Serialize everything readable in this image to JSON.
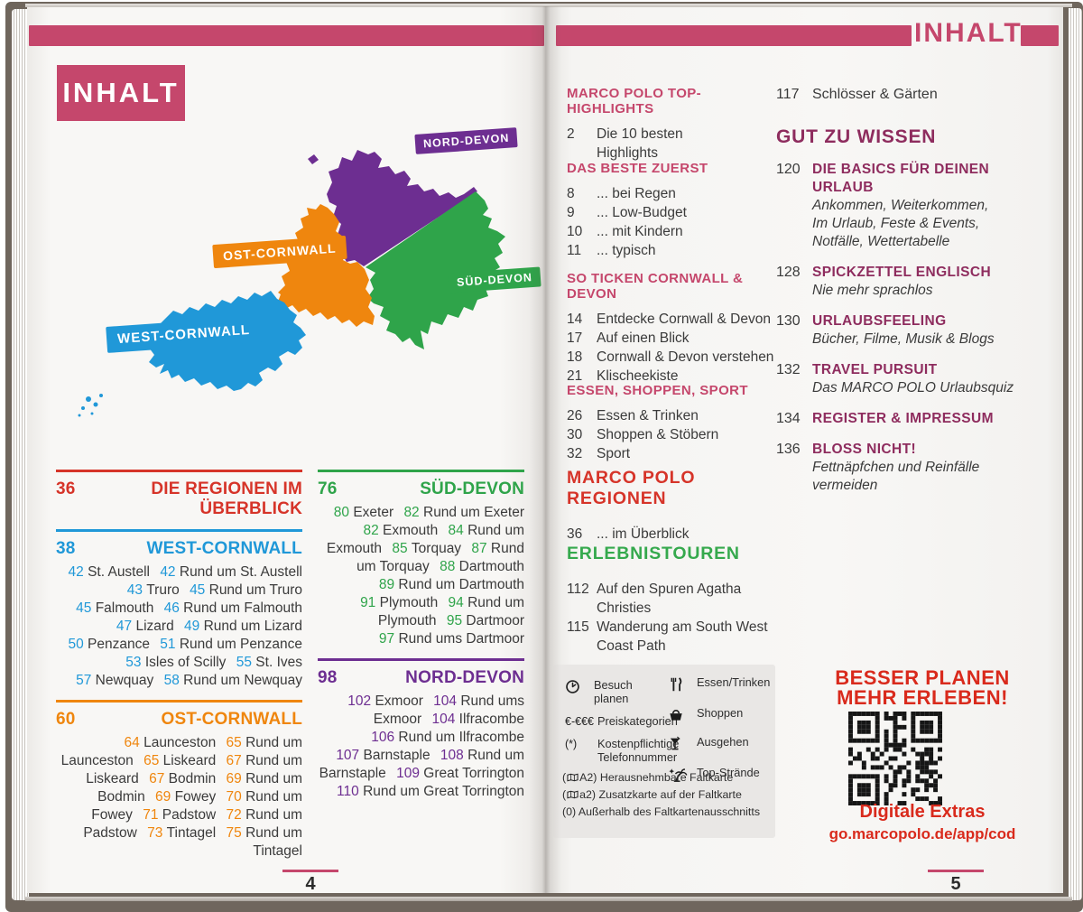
{
  "colors": {
    "pink": "#c5476c",
    "red": "#d63429",
    "blue": "#2098d8",
    "orange": "#ef860e",
    "green": "#2fa44a",
    "purple": "#6d2e91",
    "magenta": "#8e2c5e",
    "promo_red": "#d92a1c"
  },
  "left_page": {
    "title_box": "INHALT",
    "page_number": "4",
    "map_labels": [
      {
        "id": "nord-devon",
        "text": "NORD-DEVON"
      },
      {
        "id": "sued-devon",
        "text": "SÜD-DEVON"
      },
      {
        "id": "ost-cornwall",
        "text": "OST-CORNWALL"
      },
      {
        "id": "west-cornwall",
        "text": "WEST-CORNWALL"
      }
    ],
    "columns": [
      {
        "sections": [
          {
            "id": "regionen",
            "color": "red",
            "number": "36",
            "title": "DIE REGIONEN IM ÜBERBLICK",
            "entries": []
          },
          {
            "id": "west-cornwall",
            "color": "blue",
            "number": "38",
            "title": "WEST-CORNWALL",
            "entries": [
              [
                "42",
                "St. Austell"
              ],
              [
                "42",
                "Rund um St. Austell"
              ],
              [
                "43",
                "Truro"
              ],
              [
                "45",
                "Rund um Truro"
              ],
              [
                "45",
                "Falmouth"
              ],
              [
                "46",
                "Rund um Falmouth"
              ],
              [
                "47",
                "Lizard"
              ],
              [
                "49",
                "Rund um Lizard"
              ],
              [
                "50",
                "Penzance"
              ],
              [
                "51",
                "Rund um Penzance"
              ],
              [
                "53",
                "Isles of Scilly"
              ],
              [
                "55",
                "St. Ives"
              ],
              [
                "57",
                "Newquay"
              ],
              [
                "58",
                "Rund um Newquay"
              ]
            ]
          },
          {
            "id": "ost-cornwall",
            "color": "orange",
            "number": "60",
            "title": "OST-CORNWALL",
            "entries": [
              [
                "64",
                "Launceston"
              ],
              [
                "65",
                "Rund um Launceston"
              ],
              [
                "65",
                "Liskeard"
              ],
              [
                "67",
                "Rund um Liskeard"
              ],
              [
                "67",
                "Bodmin"
              ],
              [
                "69",
                "Rund um Bodmin"
              ],
              [
                "69",
                "Fowey"
              ],
              [
                "70",
                "Rund um Fowey"
              ],
              [
                "71",
                "Padstow"
              ],
              [
                "72",
                "Rund um Padstow"
              ],
              [
                "73",
                "Tintagel"
              ],
              [
                "75",
                "Rund um Tintagel"
              ]
            ]
          }
        ]
      },
      {
        "sections": [
          {
            "id": "sued-devon",
            "color": "green",
            "number": "76",
            "title": "SÜD-DEVON",
            "entries": [
              [
                "80",
                "Exeter"
              ],
              [
                "82",
                "Rund um Exeter"
              ],
              [
                "82",
                "Exmouth"
              ],
              [
                "84",
                "Rund um Exmouth"
              ],
              [
                "85",
                "Torquay"
              ],
              [
                "87",
                "Rund um Torquay"
              ],
              [
                "88",
                "Dartmouth"
              ],
              [
                "89",
                "Rund um Dartmouth"
              ],
              [
                "91",
                "Plymouth"
              ],
              [
                "94",
                "Rund um Plymouth"
              ],
              [
                "95",
                "Dartmoor"
              ],
              [
                "97",
                "Rund ums Dartmoor"
              ]
            ]
          },
          {
            "id": "nord-devon",
            "color": "purple",
            "number": "98",
            "title": "NORD-DEVON",
            "entries": [
              [
                "102",
                "Exmoor"
              ],
              [
                "104",
                "Rund ums Exmoor"
              ],
              [
                "104",
                "Ilfracombe"
              ],
              [
                "106",
                "Rund um Ilfracombe"
              ],
              [
                "107",
                "Barnstaple"
              ],
              [
                "108",
                "Rund um Barnstaple"
              ],
              [
                "109",
                "Great Torrington"
              ],
              [
                "110",
                "Rund um Great Torrington"
              ]
            ]
          }
        ]
      }
    ]
  },
  "right_page": {
    "header": "INHALT",
    "page_number": "5",
    "sections": [
      {
        "id": "top-highlights",
        "style": "pink",
        "title": "MARCO POLO TOP-HIGHLIGHTS",
        "items": [
          {
            "n": "2",
            "lines": [
              "Die 10 besten",
              "Highlights"
            ]
          }
        ]
      },
      {
        "id": "das-beste-zuerst",
        "style": "pink",
        "title": "DAS BESTE ZUERST",
        "items": [
          {
            "n": "8",
            "lines": [
              "... bei Regen"
            ]
          },
          {
            "n": "9",
            "lines": [
              "... Low-Budget"
            ]
          },
          {
            "n": "10",
            "lines": [
              "... mit Kindern"
            ]
          },
          {
            "n": "11",
            "lines": [
              "... typisch"
            ]
          }
        ]
      },
      {
        "id": "so-ticken",
        "style": "pink",
        "title": "SO TICKEN CORNWALL & DEVON",
        "items": [
          {
            "n": "14",
            "lines": [
              "Entdecke Cornwall & Devon"
            ]
          },
          {
            "n": "17",
            "lines": [
              "Auf einen Blick"
            ]
          },
          {
            "n": "18",
            "lines": [
              "Cornwall & Devon verstehen"
            ]
          },
          {
            "n": "21",
            "lines": [
              "Klischeekiste"
            ]
          }
        ]
      },
      {
        "id": "essen-shoppen-sport",
        "style": "pink",
        "title": "ESSEN, SHOPPEN, SPORT",
        "items": [
          {
            "n": "26",
            "lines": [
              "Essen & Trinken"
            ]
          },
          {
            "n": "30",
            "lines": [
              "Shoppen & Stöbern"
            ]
          },
          {
            "n": "32",
            "lines": [
              "Sport"
            ]
          }
        ]
      },
      {
        "id": "marco-polo-regionen",
        "style": "red-big",
        "title": "MARCO POLO REGIONEN",
        "items": [
          {
            "n": "36",
            "lines": [
              "... im Überblick"
            ]
          }
        ]
      },
      {
        "id": "erlebnistouren",
        "style": "green-big",
        "title": "ERLEBNISTOUREN",
        "items": [
          {
            "n": "112",
            "lines": [
              "Auf den Spuren Agatha",
              "Christies"
            ]
          },
          {
            "n": "115",
            "lines": [
              "Wanderung am South West",
              "Coast Path"
            ]
          }
        ]
      }
    ],
    "right_column": {
      "first_item": {
        "n": "117",
        "t": "Schlösser & Gärten"
      },
      "header": "GUT ZU WISSEN",
      "items": [
        {
          "n": "120",
          "title_lines": [
            "DIE BASICS FÜR DEINEN",
            "URLAUB"
          ],
          "sub_lines": [
            "Ankommen, Weiterkommen,",
            "Im Urlaub, Feste & Events,",
            "Notfälle, Wettertabelle"
          ]
        },
        {
          "n": "128",
          "title_lines": [
            "SPICKZETTEL ENGLISCH"
          ],
          "sub_lines": [
            "Nie mehr sprachlos"
          ]
        },
        {
          "n": "130",
          "title_lines": [
            "URLAUBSFEELING"
          ],
          "sub_lines": [
            "Bücher, Filme, Musik & Blogs"
          ]
        },
        {
          "n": "132",
          "title_lines": [
            "TRAVEL PURSUIT"
          ],
          "sub_lines": [
            "Das MARCO POLO Urlaubsquiz"
          ]
        },
        {
          "n": "134",
          "title_lines": [
            "REGISTER & IMPRESSUM"
          ],
          "sub_lines": []
        },
        {
          "n": "136",
          "title_lines": [
            "BLOSS NICHT!"
          ],
          "sub_lines": [
            "Fettnäpfchen und Reinfälle",
            "vermeiden"
          ]
        }
      ]
    },
    "legend": {
      "left_rows": [
        {
          "icon": "clock-icon",
          "symbol": "",
          "label": "Besuch planen"
        },
        {
          "icon": "",
          "symbol": "€-€€€",
          "label": "Preiskategorien"
        },
        {
          "icon": "",
          "symbol": "(*)",
          "label": "Kostenpflichtige Telefonnummer"
        }
      ],
      "right_rows": [
        {
          "icon": "cutlery-icon",
          "label": "Essen/Trinken"
        },
        {
          "icon": "basket-icon",
          "label": "Shoppen"
        },
        {
          "icon": "cocktail-icon",
          "label": "Ausgehen"
        },
        {
          "icon": "beach-icon",
          "label": "Top-Strände"
        }
      ],
      "footnotes": [
        {
          "open": "(",
          "icon": "map-icon",
          "code": "A2)",
          "label": "Herausnehmbare Faltkarte"
        },
        {
          "open": "(",
          "icon": "map-icon",
          "code": "a2)",
          "label": "Zusatzkarte auf der Faltkarte"
        },
        {
          "open": "",
          "icon": "",
          "code": "(0)",
          "label": "Außerhalb des Faltkartenausschnitts"
        }
      ]
    },
    "promo": {
      "line1": "BESSER PLANEN",
      "line2": "MEHR ERLEBEN!",
      "extras": "Digitale Extras",
      "url": "go.marcopolo.de/app/cod"
    }
  }
}
